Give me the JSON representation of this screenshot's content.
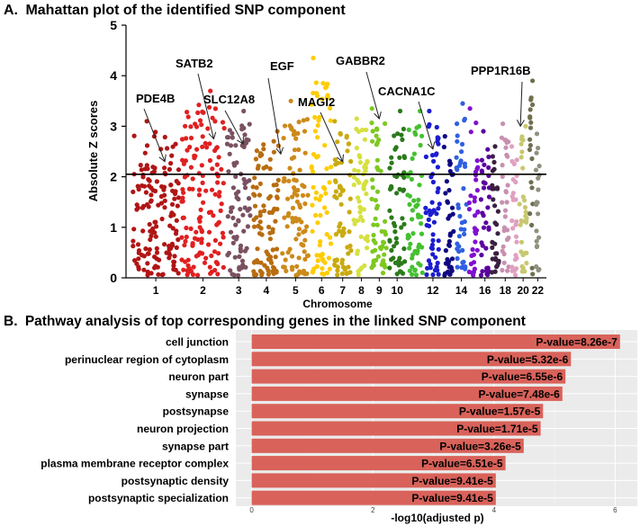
{
  "chart_data": [
    {
      "type": "scatter",
      "panel_label": "A.",
      "title": "Mahattan plot of the identified SNP component",
      "xlabel": "Chromosome",
      "ylabel": "Absolute Z scores",
      "ylim": [
        0,
        5
      ],
      "y_ticks": [
        0,
        1,
        2,
        3,
        4,
        5
      ],
      "threshold": 2.05,
      "x_tick_labels": [
        "1",
        "2",
        "3",
        "4",
        "5",
        "6",
        "7",
        "8",
        "9",
        "10",
        "12",
        "14",
        "16",
        "18",
        "20",
        "22"
      ],
      "chromosomes": [
        {
          "chr": 1,
          "color": "#b01515",
          "n": 150,
          "max": 3.1
        },
        {
          "chr": 2,
          "color": "#e02020",
          "n": 140,
          "max": 3.7
        },
        {
          "chr": 3,
          "color": "#7a5160",
          "n": 80,
          "max": 3.3
        },
        {
          "chr": 4,
          "color": "#b86d10",
          "n": 90,
          "max": 2.9
        },
        {
          "chr": 5,
          "color": "#cc8a1a",
          "n": 90,
          "max": 3.5
        },
        {
          "chr": 6,
          "color": "#ffcc00",
          "n": 70,
          "max": 4.35
        },
        {
          "chr": 7,
          "color": "#c9aa10",
          "n": 60,
          "max": 3.1
        },
        {
          "chr": 8,
          "color": "#d6e040",
          "n": 55,
          "max": 3.15
        },
        {
          "chr": 9,
          "color": "#7ec820",
          "n": 55,
          "max": 3.35
        },
        {
          "chr": 10,
          "color": "#2b7a1a",
          "n": 55,
          "max": 3.3
        },
        {
          "chr": 11,
          "color": "#44c030",
          "n": 55,
          "max": 3.3
        },
        {
          "chr": 12,
          "color": "#1c1cd0",
          "n": 55,
          "max": 3.3
        },
        {
          "chr": 13,
          "color": "#100880",
          "n": 40,
          "max": 2.8
        },
        {
          "chr": 14,
          "color": "#3060e0",
          "n": 40,
          "max": 3.45
        },
        {
          "chr": 15,
          "color": "#8010d0",
          "n": 35,
          "max": 3.35
        },
        {
          "chr": 16,
          "color": "#5a00a0",
          "n": 35,
          "max": 2.9
        },
        {
          "chr": 17,
          "color": "#3a2040",
          "n": 30,
          "max": 2.6
        },
        {
          "chr": 18,
          "color": "#c890b0",
          "n": 30,
          "max": 3.05
        },
        {
          "chr": 19,
          "color": "#e0a0c0",
          "n": 25,
          "max": 2.6
        },
        {
          "chr": 20,
          "color": "#c8c870",
          "n": 30,
          "max": 3.0
        },
        {
          "chr": 21,
          "color": "#707050",
          "n": 20,
          "max": 3.9
        },
        {
          "chr": 22,
          "color": "#909080",
          "n": 20,
          "max": 2.85
        }
      ],
      "annotations": [
        {
          "gene": "PDE4B",
          "chr": 1,
          "target_y": 2.3
        },
        {
          "gene": "SATB2",
          "chr": 2,
          "target_y": 2.75
        },
        {
          "gene": "SLC12A8",
          "chr": 3,
          "target_y": 2.65
        },
        {
          "gene": "EGF",
          "chr": 4,
          "target_y": 2.45
        },
        {
          "gene": "MAGI2",
          "chr": 7,
          "target_y": 2.3
        },
        {
          "gene": "GABBR2",
          "chr": 9,
          "target_y": 3.15
        },
        {
          "gene": "CACNA1C",
          "chr": 12,
          "target_y": 2.55
        },
        {
          "gene": "PPP1R16B",
          "chr": 20,
          "target_y": 3.0
        }
      ]
    },
    {
      "type": "bar",
      "orientation": "horizontal",
      "panel_label": "B.",
      "title": "Pathway analysis of top corresponding genes in the linked SNP component",
      "xlabel": "-log10(adjusted p)",
      "xlim": [
        0,
        6.2
      ],
      "x_ticks": [
        0,
        2,
        4,
        6
      ],
      "bar_color": "#d9625a",
      "categories": [
        "cell junction",
        "perinuclear region of cytoplasm",
        "neuron part",
        "synapse",
        "postsynapse",
        "neuron projection",
        "synapse part",
        "plasma membrane receptor complex",
        "postsynaptic density",
        "postsynaptic specialization"
      ],
      "values": [
        6.08,
        5.27,
        5.18,
        5.13,
        4.81,
        4.77,
        4.49,
        4.19,
        4.03,
        4.03
      ],
      "labels": [
        "P-value=8.26e-7",
        "P-value=5.32e-6",
        "P-value=6.55e-6",
        "P-value=7.48e-6",
        "P-value=1.57e-5",
        "P-value=1.71e-5",
        "P-value=3.26e-5",
        "P-value=6.51e-5",
        "P-value=9.41e-5",
        "P-value=9.41e-5"
      ]
    }
  ]
}
